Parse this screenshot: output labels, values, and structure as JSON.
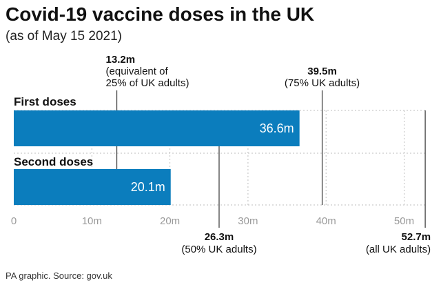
{
  "title": "Covid-19 vaccine doses in the UK",
  "subtitle": "(as of May 15 2021)",
  "source": "PA graphic. Source: gov.uk",
  "colors": {
    "bar": "#0b7dbd",
    "grid": "#bdbdbd",
    "marker": "#333333",
    "tick_text": "#9a9a9a"
  },
  "chart_data": {
    "type": "bar",
    "orientation": "horizontal",
    "categories": [
      "First doses",
      "Second doses"
    ],
    "values": [
      36.6,
      20.1
    ],
    "value_labels": [
      "36.6m",
      "20.1m"
    ],
    "unit": "m",
    "xlim": [
      0,
      55
    ],
    "xticks": [
      0,
      10,
      20,
      30,
      40,
      50
    ],
    "xtick_labels": [
      "0",
      "10m",
      "20m",
      "30m",
      "40m",
      "50m"
    ],
    "grid": true,
    "annotations": [
      {
        "x": 13.2,
        "value": "13.2m",
        "note": [
          "(equivalent of",
          "25% of UK adults)"
        ],
        "position": "above"
      },
      {
        "x": 39.5,
        "value": "39.5m",
        "note": [
          "(75% UK adults)"
        ],
        "position": "above"
      },
      {
        "x": 26.3,
        "value": "26.3m",
        "note": [
          "(50% UK adults)"
        ],
        "position": "below"
      },
      {
        "x": 52.7,
        "value": "52.7m",
        "note": [
          "(all UK adults)"
        ],
        "position": "below"
      }
    ]
  }
}
